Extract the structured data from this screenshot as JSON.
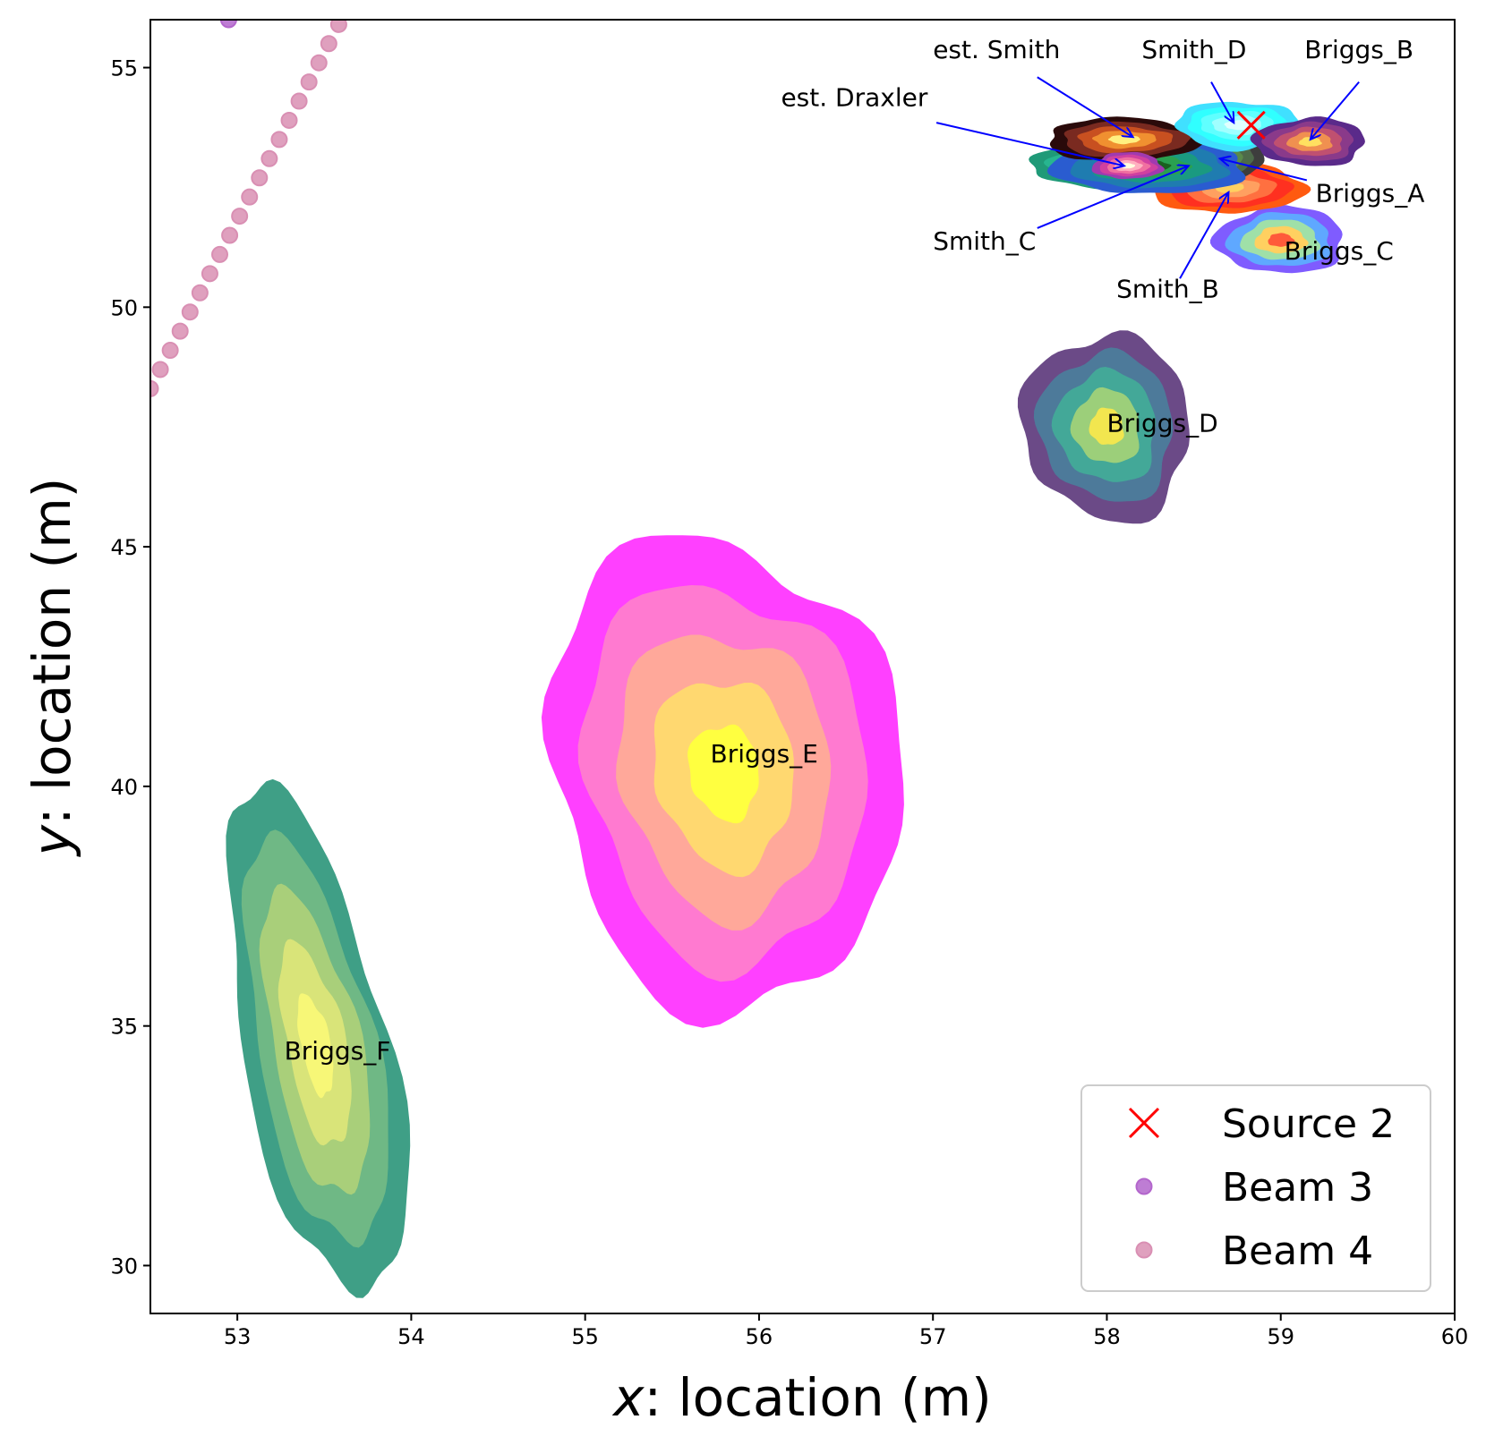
{
  "chart_data": {
    "type": "scatter",
    "title": "",
    "xlabel": {
      "italic": "x",
      "rest": ": location (m)"
    },
    "ylabel": {
      "italic": "y",
      "rest": ": location (m)"
    },
    "xlim": [
      52.5,
      60
    ],
    "ylim": [
      29,
      56
    ],
    "xticks": [
      53,
      54,
      55,
      56,
      57,
      58,
      59,
      60
    ],
    "yticks": [
      30,
      35,
      40,
      45,
      50,
      55
    ],
    "grid": false,
    "legend": {
      "placement": "bottom-right",
      "entries": [
        {
          "label": "Source 2",
          "marker": "x",
          "color": "#ff0000"
        },
        {
          "label": "Beam 3",
          "marker": "o",
          "color": "#b366cc"
        },
        {
          "label": "Beam 4",
          "marker": "o",
          "color": "#d98fb3"
        }
      ]
    },
    "source": {
      "name": "Source 2",
      "x": 58.83,
      "y": 53.8,
      "color": "#ff0000"
    },
    "beams": [
      {
        "name": "Beam 3",
        "color": "#b366cc",
        "points": [
          [
            52.95,
            56.0
          ]
        ]
      },
      {
        "name": "Beam 4",
        "color": "#d98fb3",
        "start": [
          52.5,
          48.3
        ],
        "step": [
          0.057,
          0.4
        ],
        "count": 20
      }
    ],
    "estimates": [
      {
        "name": "Briggs_F",
        "cx": 53.45,
        "cy": 34.6,
        "sx": 0.42,
        "sy": 5.4,
        "rot": 12,
        "colors": [
          "#3f9f86",
          "#6fb885",
          "#a9cf7a",
          "#d9e479",
          "#f7f777"
        ],
        "label": "Briggs_F",
        "label_at": [
          53.27,
          34.3
        ]
      },
      {
        "name": "Briggs_E",
        "cx": 55.8,
        "cy": 40.3,
        "sx": 1.0,
        "sy": 5.0,
        "rot": 10,
        "colors": [
          "#ff40ff",
          "#ff7ad0",
          "#ffa89a",
          "#ffd870",
          "#ffff40"
        ],
        "label": "Briggs_E",
        "label_at": [
          55.72,
          40.5
        ]
      },
      {
        "name": "Briggs_D",
        "cx": 58.0,
        "cy": 47.5,
        "sx": 0.48,
        "sy": 1.95,
        "rot": 15,
        "colors": [
          "#6b4a87",
          "#4d7a9a",
          "#43a898",
          "#9ccf7a",
          "#f2e64f"
        ],
        "label": "Briggs_D",
        "label_at": [
          58.0,
          47.4
        ]
      },
      {
        "name": "Briggs_C",
        "cx": 59.0,
        "cy": 51.4,
        "sx": 0.37,
        "sy": 0.7,
        "rot": 0,
        "colors": [
          "#7f5cff",
          "#5fa8ff",
          "#9fe0a8",
          "#ffd060",
          "#ff5a3a"
        ],
        "label": "Briggs_C",
        "label_at": [
          59.02,
          51.0
        ]
      },
      {
        "name": "Smith_B",
        "cx": 58.7,
        "cy": 52.5,
        "sx": 0.43,
        "sy": 0.55,
        "rot": 0,
        "colors": [
          "#ff5a10",
          "#ff3020",
          "#ff7040",
          "#ffa060",
          "#ffd060"
        ]
      },
      {
        "name": "Briggs_A",
        "cx": 58.6,
        "cy": 53.1,
        "sx": 0.3,
        "sy": 0.5,
        "rot": 0,
        "colors": [
          "#3d3d3d",
          "#4d6a4a",
          "#5a8a4a",
          "#8aa84a",
          "#c4c84a"
        ]
      },
      {
        "name": "Smith_C",
        "cx": 58.05,
        "cy": 52.95,
        "sx": 0.48,
        "sy": 0.5,
        "rot": 0,
        "colors": [
          "#1f9a78",
          "#27b590",
          "#44c8a0",
          "#5ad4b0",
          "#7ce0c0"
        ]
      },
      {
        "name": "est. Draxler",
        "cx": 58.25,
        "cy": 52.95,
        "sx": 0.55,
        "sy": 0.6,
        "rot": 0,
        "colors": [
          "#2a5cd0",
          "#1f7cb0",
          "#1a9a80",
          "#2aa050",
          "#1a6020"
        ]
      },
      {
        "name": "est. Smith",
        "cx": 58.1,
        "cy": 53.5,
        "sx": 0.45,
        "sy": 0.45,
        "rot": 0,
        "colors": [
          "#2a0a0a",
          "#7a2a20",
          "#c85020",
          "#f09030",
          "#fff080"
        ]
      },
      {
        "name": "Smith_D",
        "cx": 58.75,
        "cy": 53.8,
        "sx": 0.35,
        "sy": 0.5,
        "rot": 0,
        "colors": [
          "#40e0ff",
          "#30ffff",
          "#60ffff",
          "#a0ffff",
          "#e0ffff"
        ]
      },
      {
        "name": "Briggs_B",
        "cx": 59.17,
        "cy": 53.45,
        "sx": 0.32,
        "sy": 0.5,
        "rot": 0,
        "colors": [
          "#5a2a8a",
          "#8a3a8a",
          "#c05070",
          "#f09050",
          "#ffe060"
        ]
      },
      {
        "name": "inner-draxler",
        "cx": 58.12,
        "cy": 52.95,
        "sx": 0.2,
        "sy": 0.28,
        "rot": 0,
        "colors": [
          "#a03ab0",
          "#d040a0",
          "#f070a0",
          "#ffb0c0",
          "#ffffe0"
        ]
      }
    ],
    "annotations": [
      {
        "text": "est. Smith",
        "text_at": [
          57.0,
          55.2
        ],
        "anchor": "start",
        "arrow_from": [
          57.6,
          54.8
        ],
        "arrow_to": [
          58.15,
          53.55
        ]
      },
      {
        "text": "Smith_D",
        "text_at": [
          58.2,
          55.2
        ],
        "anchor": "start",
        "arrow_from": [
          58.6,
          54.7
        ],
        "arrow_to": [
          58.73,
          53.85
        ]
      },
      {
        "text": "Briggs_B",
        "text_at": [
          59.45,
          55.2
        ],
        "anchor": "middle",
        "arrow_from": [
          59.45,
          54.7
        ],
        "arrow_to": [
          59.17,
          53.5
        ]
      },
      {
        "text": "est. Draxler",
        "text_at": [
          56.97,
          54.2
        ],
        "anchor": "end",
        "arrow_from": [
          57.02,
          53.85
        ],
        "arrow_to": [
          58.1,
          52.95
        ]
      },
      {
        "text": "Briggs_A",
        "text_at": [
          59.2,
          52.2
        ],
        "anchor": "start",
        "arrow_from": [
          59.15,
          52.65
        ],
        "arrow_to": [
          58.65,
          53.1
        ]
      },
      {
        "text": "Smith_C",
        "text_at": [
          57.0,
          51.2
        ],
        "anchor": "start",
        "arrow_from": [
          57.6,
          51.65
        ],
        "arrow_to": [
          58.47,
          52.95
        ]
      },
      {
        "text": "Smith_B",
        "text_at": [
          58.35,
          50.2
        ],
        "anchor": "middle",
        "arrow_from": [
          58.42,
          50.6
        ],
        "arrow_to": [
          58.7,
          52.4
        ]
      }
    ]
  }
}
